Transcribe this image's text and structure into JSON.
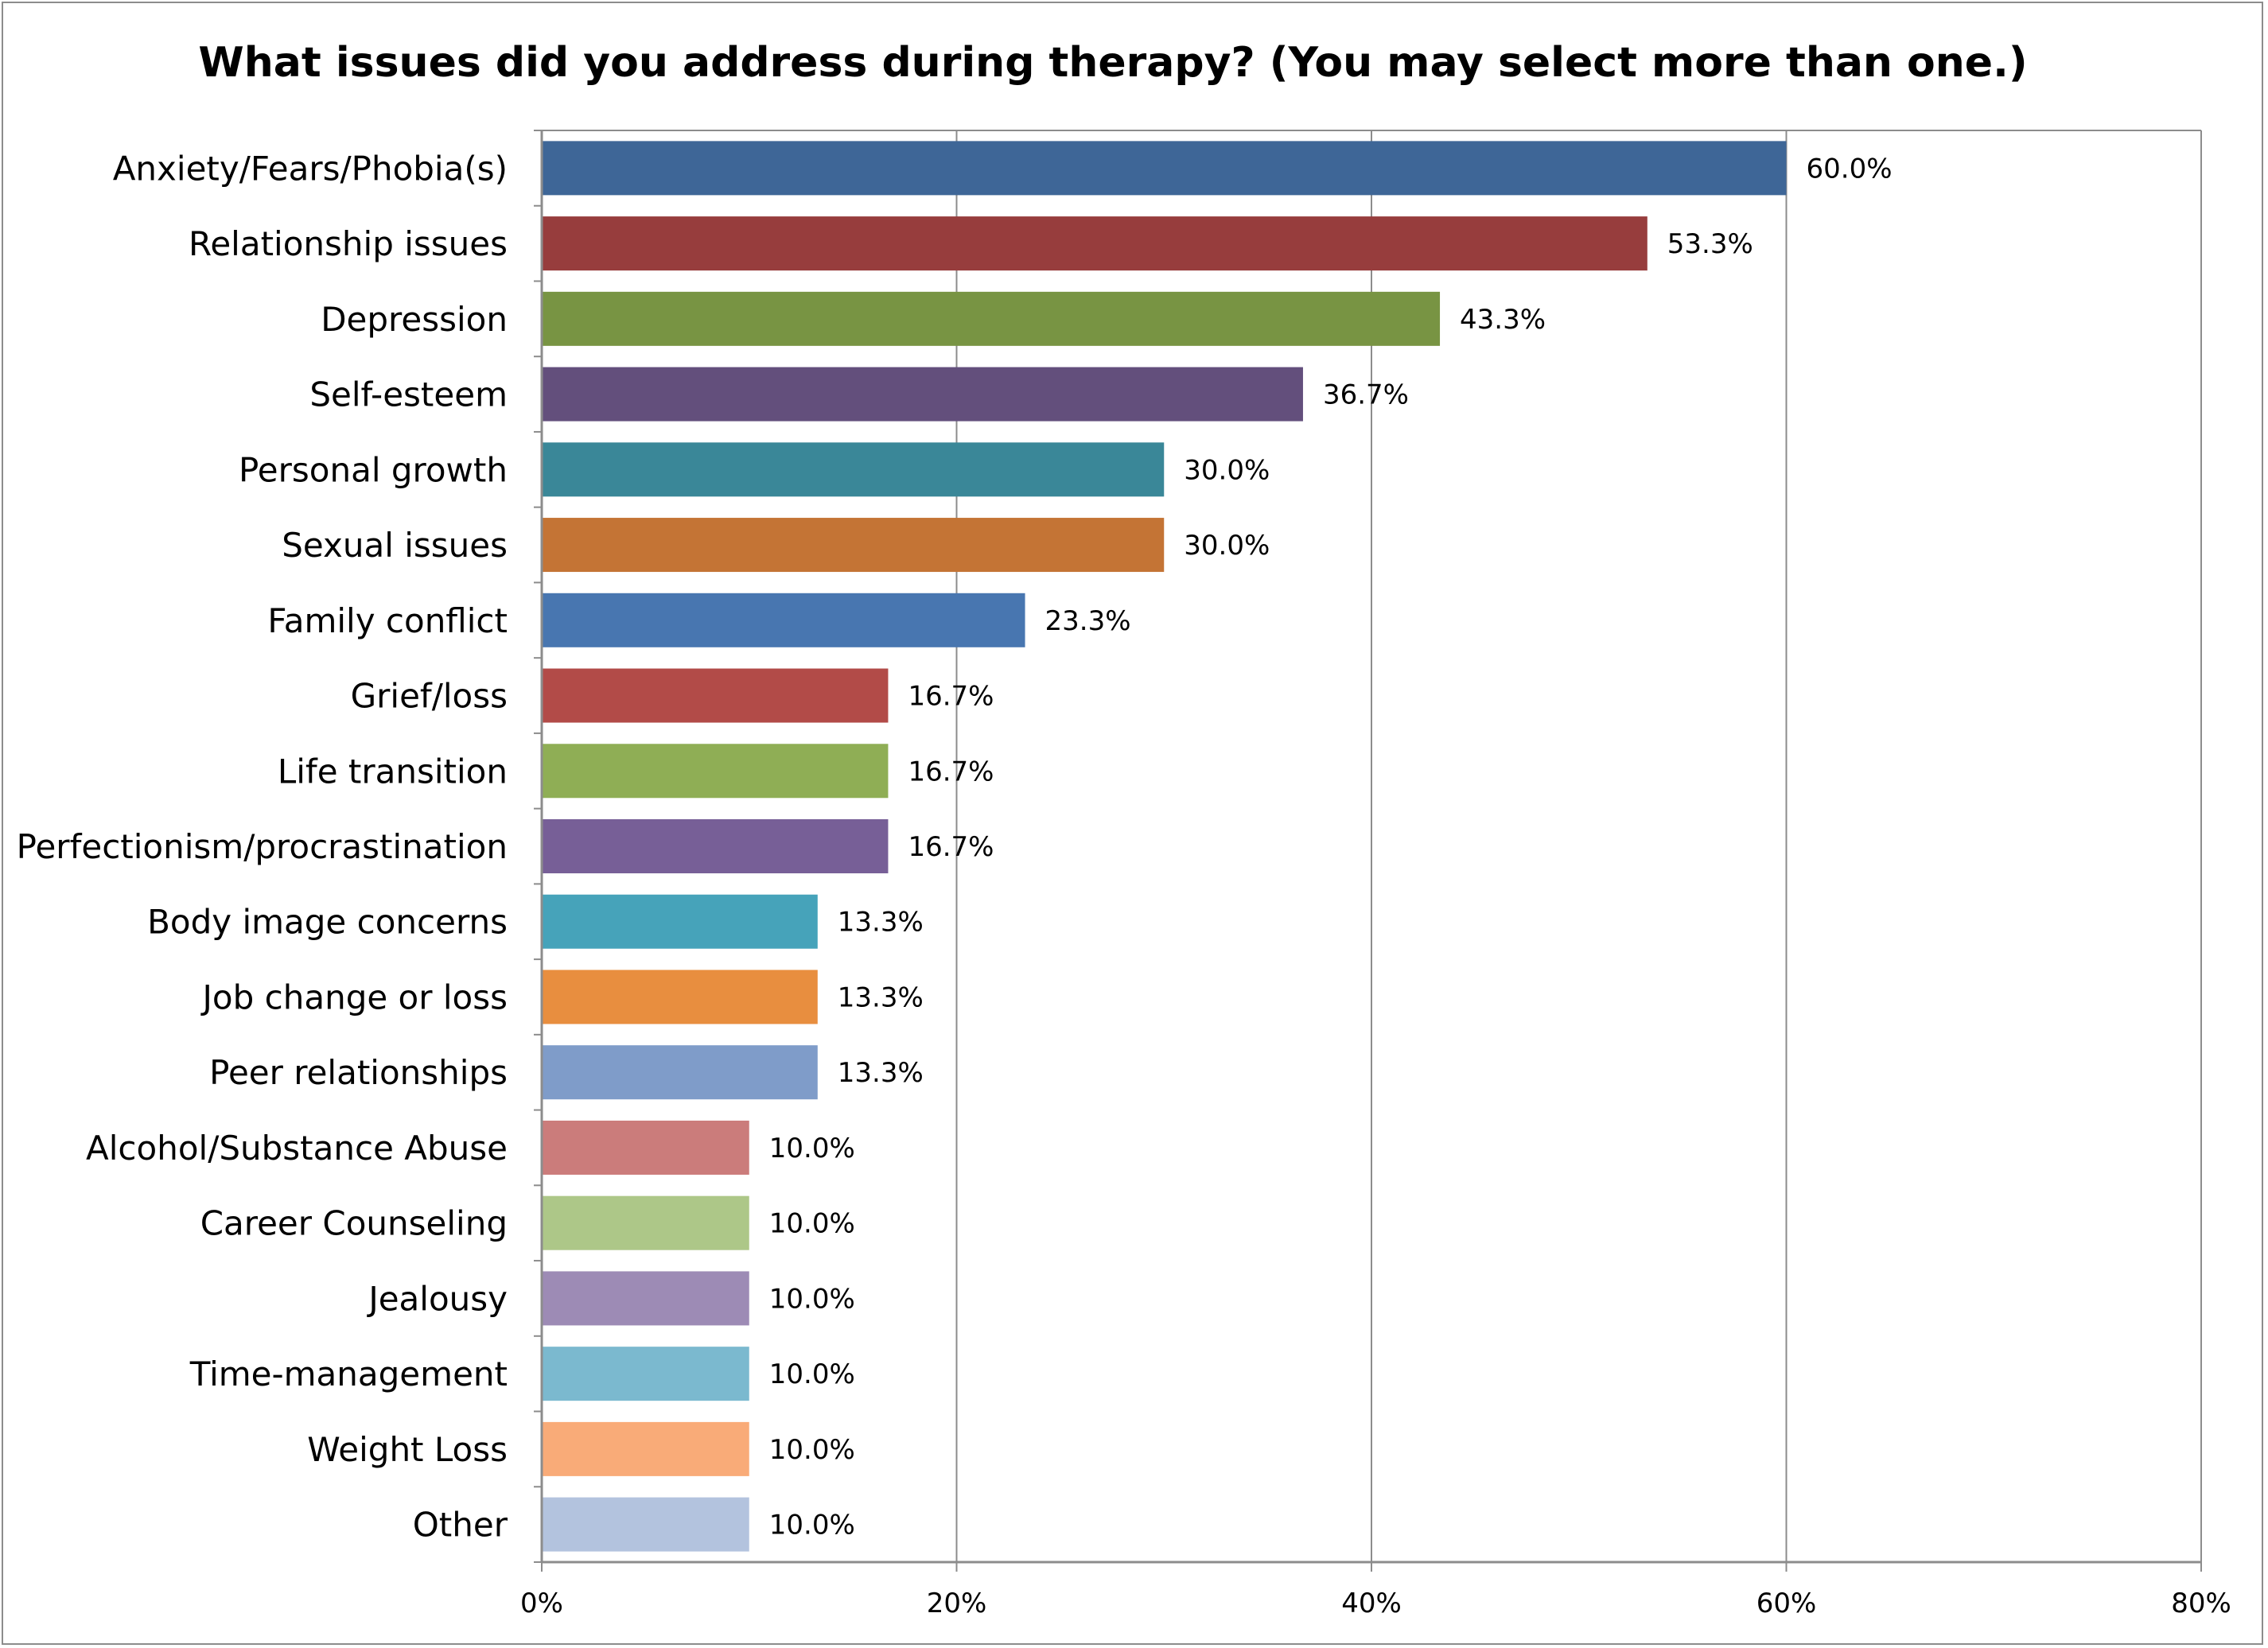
{
  "chart_data": {
    "type": "bar",
    "orientation": "horizontal",
    "title": "What issues did you address during therapy? (You may select more than one.)",
    "xlabel": "",
    "ylabel": "",
    "xlim": [
      0,
      80
    ],
    "x_ticks": [
      0,
      20,
      40,
      60,
      80
    ],
    "x_tick_labels": [
      "0%",
      "20%",
      "40%",
      "60%",
      "80%"
    ],
    "grid": "vertical",
    "legend": "none",
    "categories": [
      "Anxiety/Fears/Phobia(s)",
      "Relationship issues",
      "Depression",
      "Self-esteem",
      "Personal growth",
      "Sexual issues",
      "Family conflict",
      "Grief/loss",
      "Life transition",
      "Perfectionism/procrastination",
      "Body image concerns",
      "Job change or loss",
      "Peer relationships",
      "Alcohol/Substance Abuse",
      "Career Counseling",
      "Jealousy",
      "Time-management",
      "Weight Loss",
      "Other"
    ],
    "values": [
      60.0,
      53.3,
      43.3,
      36.7,
      30.0,
      30.0,
      23.3,
      16.7,
      16.7,
      16.7,
      13.3,
      13.3,
      13.3,
      10.0,
      10.0,
      10.0,
      10.0,
      10.0,
      10.0
    ],
    "value_labels": [
      "60.0%",
      "53.3%",
      "43.3%",
      "36.7%",
      "30.0%",
      "30.0%",
      "23.3%",
      "16.7%",
      "16.7%",
      "16.7%",
      "13.3%",
      "13.3%",
      "13.3%",
      "10.0%",
      "10.0%",
      "10.0%",
      "10.0%",
      "10.0%",
      "10.0%"
    ],
    "colors": [
      "#3E6697",
      "#973D3D",
      "#789443",
      "#634F7C",
      "#3A8798",
      "#C47435",
      "#4876B0",
      "#B24B48",
      "#8FAE55",
      "#775F97",
      "#46A3BA",
      "#E88E3F",
      "#7F9CC9",
      "#CB7C7B",
      "#ADC788",
      "#9D8BB5",
      "#7BB9CF",
      "#F9AB78",
      "#B3C3DE"
    ],
    "gridline_color": "#8c8c8c",
    "axis_color": "#8c8c8c"
  }
}
